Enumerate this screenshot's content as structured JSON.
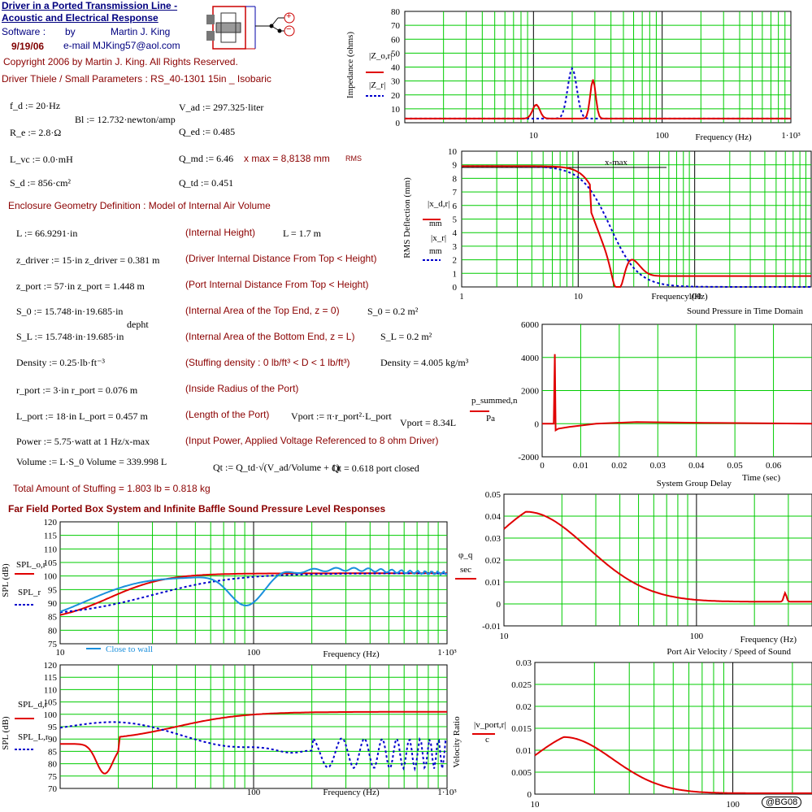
{
  "header": {
    "title_line1": "Driver in a Ported Transmission Line -",
    "title_line2": "Acoustic and Electrical Response",
    "software_label": "Software :",
    "by_label": "by",
    "author": "Martin J. King",
    "date": "9/19/06",
    "email": "e-mail  MJKing57@aol.com",
    "copyright": "Copyright 2006 by Martin J. King. All Rights Reserved.",
    "ts_params": "Driver Thiele / Small Parameters : RS_40-1301 15in _ Isobaric",
    "terminal_plus": "+",
    "terminal_minus": "−"
  },
  "driver_params": {
    "fd": "f_d := 20·Hz",
    "bl": "Bl := 12.732·newton/amp",
    "vad": "V_ad := 297.325·liter",
    "re": "R_e := 2.8·Ω",
    "qed": "Q_ed := 0.485",
    "lvc": "L_vc := 0.0·mH",
    "qmd": "Q_md := 6.46",
    "xmax": "x max = 8,8138 mm",
    "xmax_unit": "RMS",
    "sd": "S_d := 856·cm²",
    "qtd": "Q_td := 0.451"
  },
  "enclosure": {
    "heading": "Enclosure Geometry Definition : Model of Internal Air Volume",
    "rows": [
      {
        "left": "L := 66.9291·in",
        "desc": "(Internal Height)",
        "right": "L = 1.7 m"
      },
      {
        "left": "z_driver := 15·in     z_driver = 0.381 m",
        "desc": "(Driver Internal Distance From Top < Height)",
        "right": ""
      },
      {
        "left": "z_port := 57·in       z_port = 1.448 m",
        "desc": "(Port Internal Distance From Top < Height)",
        "right": ""
      },
      {
        "left": "S_0 := 15.748·in·19.685·in",
        "desc": "(Internal Area of the Top End, z = 0)",
        "right": "S_0 = 0.2 m²"
      },
      {
        "left": "S_L := 15.748·in·19.685·in",
        "desc": "(Internal Area of the Bottom End, z = L)",
        "right": "S_L = 0.2 m²"
      },
      {
        "left": "Density := 0.25·lb·ft⁻³",
        "desc": "(Stuffing density : 0 lb/ft³ < D < 1 lb/ft³)",
        "right": "Density = 4.005 kg/m³"
      },
      {
        "left": "r_port := 3·in        r_port = 0.076 m",
        "desc": "(Inside Radius of the Port)",
        "right": ""
      },
      {
        "left": "L_port := 18·in       L_port = 0.457 m",
        "desc": "(Length of the Port)",
        "right": "Vport := π·r_port²·L_port"
      },
      {
        "left": "Power := 5.75·watt  at 1 Hz/x-max",
        "desc": "(Input Power, Applied Voltage Referenced to 8 ohm Driver)",
        "right": ""
      },
      {
        "left": "Volume := L·S_0      Volume = 339.998 L",
        "desc": "Qt := Q_td·√(V_ad/Volume + 1)",
        "right": "Qt = 0.618    port closed"
      }
    ],
    "depht_label": "depht",
    "vport_result": "Vport = 8.34L",
    "stuffing_total": "Total Amount of Stuffing    = 1.803 lb = 0.818 kg"
  },
  "spl_heading": "Far Field Ported Box System and Infinite Baffle Sound Pressure Level Responses",
  "badge": "@BG08",
  "charts": {
    "impedance": {
      "ylabel": "Impedance (ohms)",
      "xlabel": "Frequency (Hz)",
      "legend1": "|Z_o,r|",
      "legend2": "|Z_r|",
      "yticks": [
        "80",
        "70",
        "60",
        "50",
        "40",
        "30",
        "20",
        "10",
        "0"
      ],
      "xticks": [
        "10",
        "100",
        "1·10³"
      ]
    },
    "deflection": {
      "ylabel": "RMS Deflection (mm)",
      "xlabel": "Frequency (Hz)",
      "legend1": "|x_d,r|",
      "legend1_unit": "mm",
      "legend2": "|x_r|",
      "legend2_unit": "mm",
      "xmax_label": "x-max",
      "yticks": [
        "10",
        "9",
        "8",
        "7",
        "6",
        "5",
        "4",
        "3",
        "2",
        "1",
        "0"
      ],
      "xticks": [
        "1",
        "10",
        "100"
      ]
    },
    "time": {
      "title": "Sound Pressure in Time Domain",
      "xlabel": "Time (sec)",
      "legend1": "p_summed,n",
      "legend1_unit": "Pa",
      "yticks": [
        "6000",
        "4000",
        "2000",
        "0",
        "-2000"
      ],
      "xticks": [
        "0",
        "0.01",
        "0.02",
        "0.03",
        "0.04",
        "0.05",
        "0.06"
      ]
    },
    "spl1": {
      "ylabel": "SPL (dB)",
      "xlabel": "Frequency (Hz)",
      "legend1": "SPL_o,r",
      "legend2": "SPL_r",
      "close_to_wall": "Close to wall",
      "yticks": [
        "120",
        "115",
        "110",
        "105",
        "100",
        "95",
        "90",
        "85",
        "80",
        "75"
      ],
      "xticks": [
        "10",
        "100",
        "1·10³"
      ]
    },
    "delay": {
      "title": "System Group Delay",
      "ylabel_num": "φ_q",
      "ylabel_den": "sec",
      "xlabel": "Frequency (Hz)",
      "yticks": [
        "0.05",
        "0.04",
        "0.03",
        "0.02",
        "0.01",
        "0",
        "-0.01"
      ],
      "xticks": [
        "10",
        "100"
      ]
    },
    "spl2": {
      "ylabel": "SPL (dB)",
      "xlabel": "Frequency (Hz)",
      "legend1": "SPL_d,r",
      "legend2": "SPL_L,r",
      "yticks": [
        "120",
        "115",
        "110",
        "105",
        "100",
        "95",
        "90",
        "85",
        "80",
        "75",
        "70"
      ],
      "xticks": [
        "100",
        "1·10³"
      ]
    },
    "velocity": {
      "title": "Port Air Velocity / Speed of Sound",
      "ylabel": "Velocity Ratio",
      "legend_num": "|v_port,r|",
      "legend_den": "c",
      "yticks": [
        "0.03",
        "0.025",
        "0.02",
        "0.015",
        "0.01",
        "0.005",
        "0"
      ],
      "xticks": [
        "10",
        "100"
      ]
    }
  },
  "colors": {
    "grid": "#00cc00",
    "red_trace": "#e00000",
    "blue_trace": "#0000cc",
    "cyan_trace": "#1a8fdc",
    "heading_red": "#8b0000"
  }
}
